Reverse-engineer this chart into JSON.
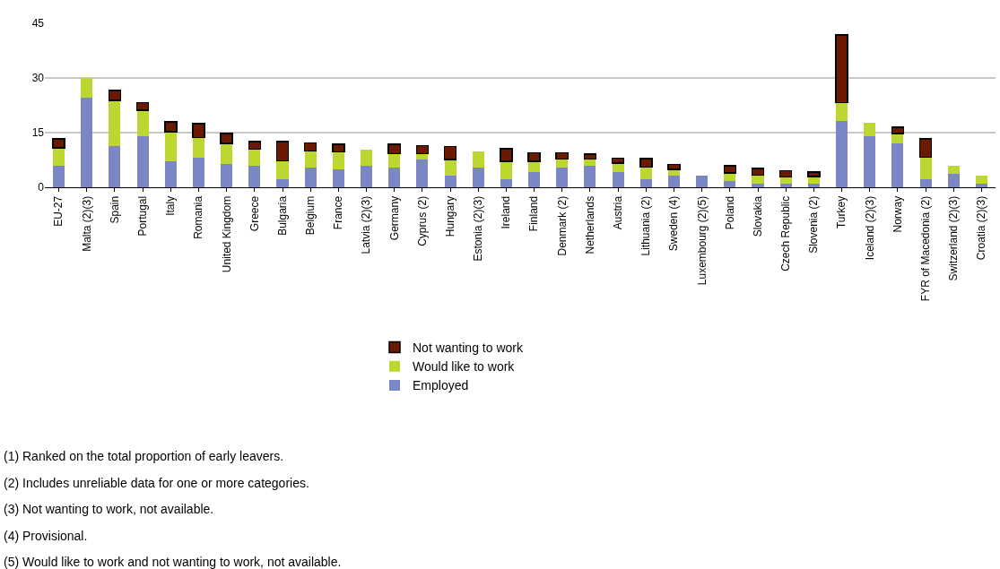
{
  "chart_data": {
    "type": "bar",
    "stacked": true,
    "categories": [
      "EU-27",
      "Malta (2)(3)",
      "Spain",
      "Portugal",
      "Italy",
      "Romania",
      "United Kingdom",
      "Greece",
      "Bulgaria",
      "Belgium",
      "France",
      "Latvia (2)(3)",
      "Germany",
      "Cyprus (2)",
      "Hungary",
      "Estonia (2)(3)",
      "Ireland",
      "Finland",
      "Denmark (2)",
      "Netherlands",
      "Austria",
      "Lithuania (2)",
      "Sweden (4)",
      "Luxembourg (2)(5)",
      "Poland",
      "Slovakia",
      "Czech Republic",
      "Slovenia (2)",
      "Turkey",
      "Iceland (2)(3)",
      "Norway",
      "FYR of Macedonia (2)",
      "Switzerland (2)(3)",
      "Croatia (2)(3)"
    ],
    "series": [
      {
        "name": "Employed",
        "color": "#7b86c4",
        "values": [
          5.9,
          24.7,
          11.3,
          14.0,
          7.1,
          8.1,
          6.5,
          5.9,
          2.2,
          5.5,
          4.9,
          5.9,
          5.5,
          7.6,
          3.3,
          5.5,
          2.2,
          4.3,
          5.5,
          5.9,
          4.3,
          2.2,
          3.3,
          3.3,
          1.6,
          1.1,
          1.1,
          1.1,
          18.3,
          14.0,
          12.0,
          2.2,
          3.8,
          1.1
        ]
      },
      {
        "name": "Would like to work",
        "color": "#bed630",
        "values": [
          4.9,
          5.2,
          12.6,
          7.2,
          8.1,
          5.5,
          5.6,
          4.5,
          5.1,
          4.4,
          4.8,
          4.5,
          3.7,
          1.6,
          4.3,
          4.3,
          4.9,
          2.8,
          2.2,
          1.8,
          2.3,
          3.3,
          1.6,
          null,
          2.3,
          2.2,
          1.7,
          1.8,
          4.9,
          3.8,
          2.7,
          6.1,
          2.1,
          2.2
        ]
      },
      {
        "name": "Not wanting to work",
        "color": "#6b1a00",
        "values": [
          2.5,
          null,
          2.7,
          2.1,
          2.8,
          3.9,
          2.7,
          2.2,
          5.3,
          2.3,
          2.1,
          null,
          2.6,
          2.2,
          3.6,
          null,
          3.5,
          2.4,
          1.8,
          1.4,
          1.4,
          2.4,
          1.4,
          null,
          2.0,
          1.9,
          1.8,
          1.3,
          18.6,
          null,
          1.8,
          5.0,
          null,
          null
        ]
      }
    ],
    "ylim": [
      0,
      45
    ],
    "yticks": [
      0,
      15,
      30,
      45
    ],
    "grid": "y",
    "legend": "bottom",
    "annotations": [
      "(1) Ranked on the total proportion of early leavers.",
      "(2) Includes unreliable data for one or more categories.",
      "(3) Not wanting to work, not available.",
      "(4) Provisional.",
      "(5) Would like to work and not wanting to work, not available."
    ]
  }
}
